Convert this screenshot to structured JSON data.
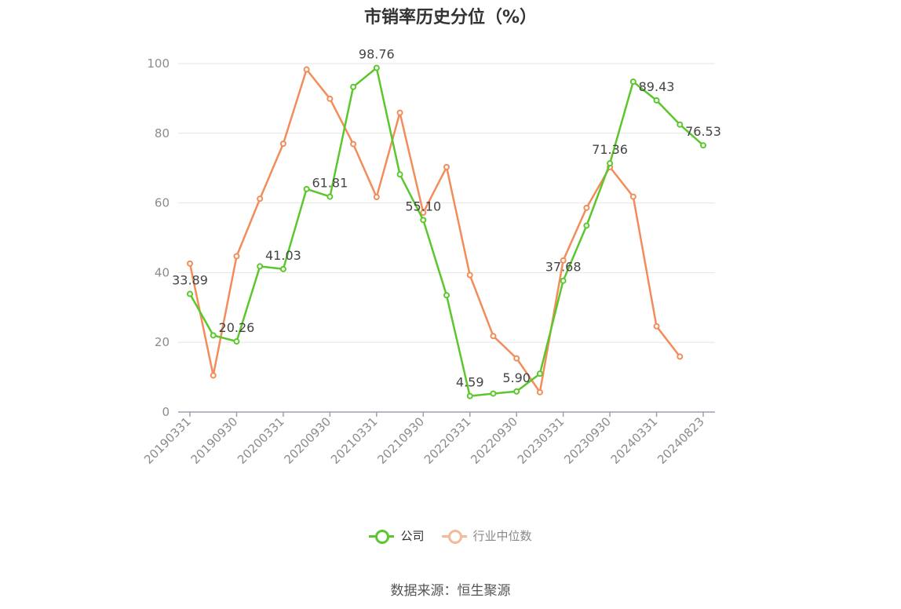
{
  "chart_data": {
    "type": "line",
    "title": "市销率历史分位（%）",
    "xlabel": "",
    "ylabel": "",
    "ylim": [
      0,
      100
    ],
    "yticks": [
      0,
      20,
      40,
      60,
      80,
      100
    ],
    "x": [
      "20190331",
      "20190630",
      "20190930",
      "20191231",
      "20200331",
      "20200630",
      "20200930",
      "20201231",
      "20210331",
      "20210630",
      "20210930",
      "20211231",
      "20220331",
      "20220630",
      "20220930",
      "20221231",
      "20230331",
      "20230630",
      "20230930",
      "20231231",
      "20240331",
      "20240630",
      "20240823"
    ],
    "xtick_labels": [
      "20190331",
      "20190930",
      "20200331",
      "20200930",
      "20210331",
      "20210930",
      "20220331",
      "20220930",
      "20230331",
      "20230930",
      "20240331",
      "20240823"
    ],
    "grid": true,
    "legend_position": "bottom-center",
    "series": [
      {
        "name": "公司",
        "color": "#5cc72c",
        "values": [
          33.89,
          22.0,
          20.26,
          41.8,
          41.03,
          64.0,
          61.81,
          93.3,
          98.76,
          68.2,
          55.1,
          33.5,
          4.59,
          5.3,
          5.9,
          11.0,
          37.68,
          53.5,
          71.36,
          94.8,
          89.43,
          82.5,
          76.53
        ],
        "labels": {
          "0": "33.89",
          "2": "20.26",
          "4": "41.03",
          "6": "61.81",
          "8": "98.76",
          "10": "55.10",
          "12": "4.59",
          "14": "5.90",
          "16": "37.68",
          "18": "71.36",
          "20": "89.43",
          "22": "76.53"
        }
      },
      {
        "name": "行业中位数",
        "color": "#f28c5a",
        "values": [
          42.6,
          10.5,
          44.7,
          61.2,
          77.0,
          98.3,
          89.9,
          76.9,
          61.7,
          85.9,
          57.2,
          70.3,
          39.3,
          21.8,
          15.4,
          5.7,
          43.5,
          58.6,
          70.3,
          61.8,
          24.6,
          15.9,
          null
        ]
      }
    ]
  },
  "legend": {
    "items": [
      {
        "label": "公司",
        "color": "#5cc72c"
      },
      {
        "label": "行业中位数",
        "color": "#f7b99a"
      }
    ]
  },
  "source": "数据来源：恒生聚源"
}
